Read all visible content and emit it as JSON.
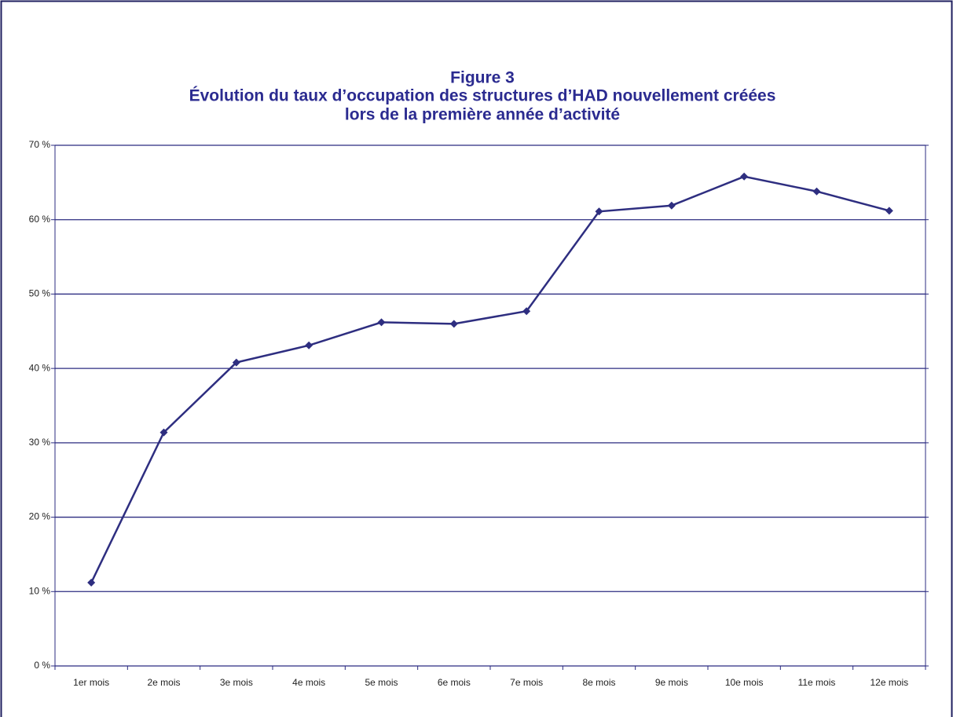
{
  "chart_data": {
    "type": "line",
    "title": [
      "Figure 3",
      "Évolution du taux d’occupation des structures d’HAD nouvellement créées",
      "lors de la première année d’activité"
    ],
    "categories": [
      "1er mois",
      "2e mois",
      "3e mois",
      "4e mois",
      "5e mois",
      "6e mois",
      "7e mois",
      "8e mois",
      "9e mois",
      "10e mois",
      "11e mois",
      "12e mois"
    ],
    "values": [
      11.2,
      31.4,
      40.8,
      43.1,
      46.2,
      46.0,
      47.7,
      61.1,
      61.9,
      65.8,
      63.8,
      61.2
    ],
    "color": "#2e2e80",
    "ylim": [
      0,
      70
    ],
    "yticks": [
      {
        "value": 0,
        "label": "0 %"
      },
      {
        "value": 10,
        "label": "10 %"
      },
      {
        "value": 20,
        "label": "20 %"
      },
      {
        "value": 30,
        "label": "30 %"
      },
      {
        "value": 40,
        "label": "40 %"
      },
      {
        "value": 50,
        "label": "50 %"
      },
      {
        "value": 60,
        "label": "60 %"
      },
      {
        "value": 70,
        "label": "70 %"
      }
    ],
    "grid": true
  }
}
